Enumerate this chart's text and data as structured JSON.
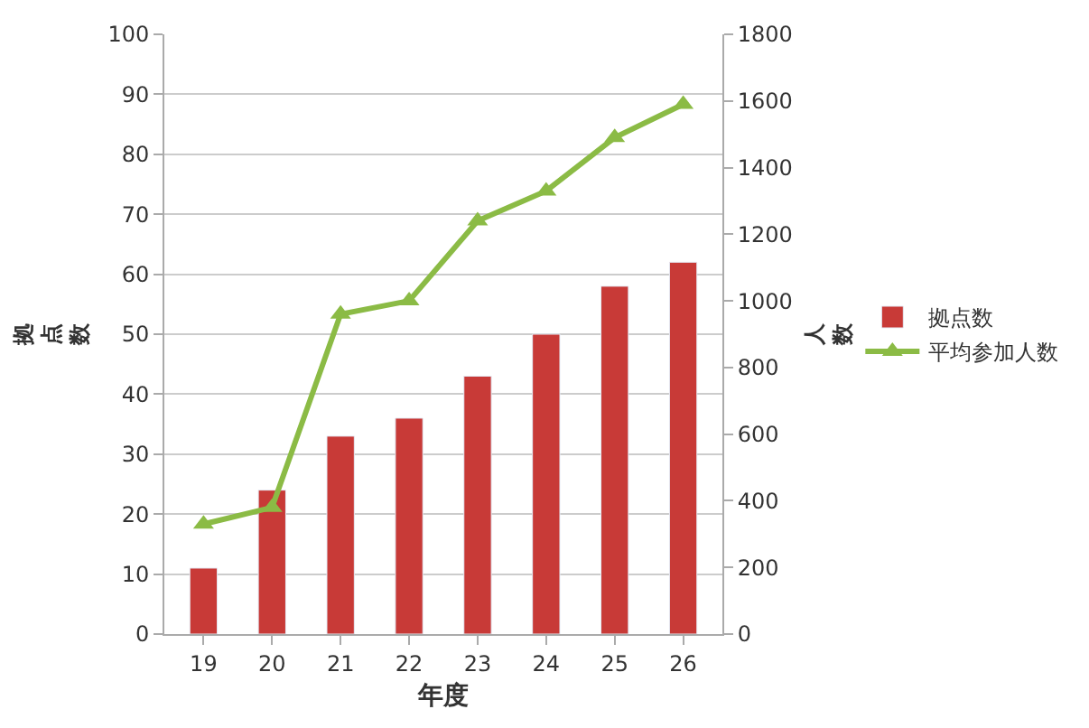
{
  "chart_data": {
    "type": "bar",
    "xlabel": "年度",
    "ylabel": "拠点数",
    "y2label": "人数",
    "categories": [
      "19",
      "20",
      "21",
      "22",
      "23",
      "24",
      "25",
      "26"
    ],
    "series": [
      {
        "name": "拠点数",
        "color": "#c83a37",
        "values": [
          11,
          24,
          33,
          36,
          43,
          50,
          58,
          62
        ]
      },
      {
        "name": "平均参加人数",
        "type": "line",
        "axis": "y2",
        "color": "#8bbb45",
        "marker": "triangle",
        "values": [
          330,
          380,
          960,
          1000,
          1240,
          1330,
          1490,
          1590
        ]
      }
    ],
    "ylim": [
      0,
      100
    ],
    "yticks": [
      0,
      10,
      20,
      30,
      40,
      50,
      60,
      70,
      80,
      90,
      100
    ],
    "y2lim": [
      0,
      1800
    ],
    "y2ticks": [
      0,
      200,
      400,
      600,
      800,
      1000,
      1200,
      1400,
      1600,
      1800
    ],
    "grid": "y",
    "legend": "right"
  }
}
